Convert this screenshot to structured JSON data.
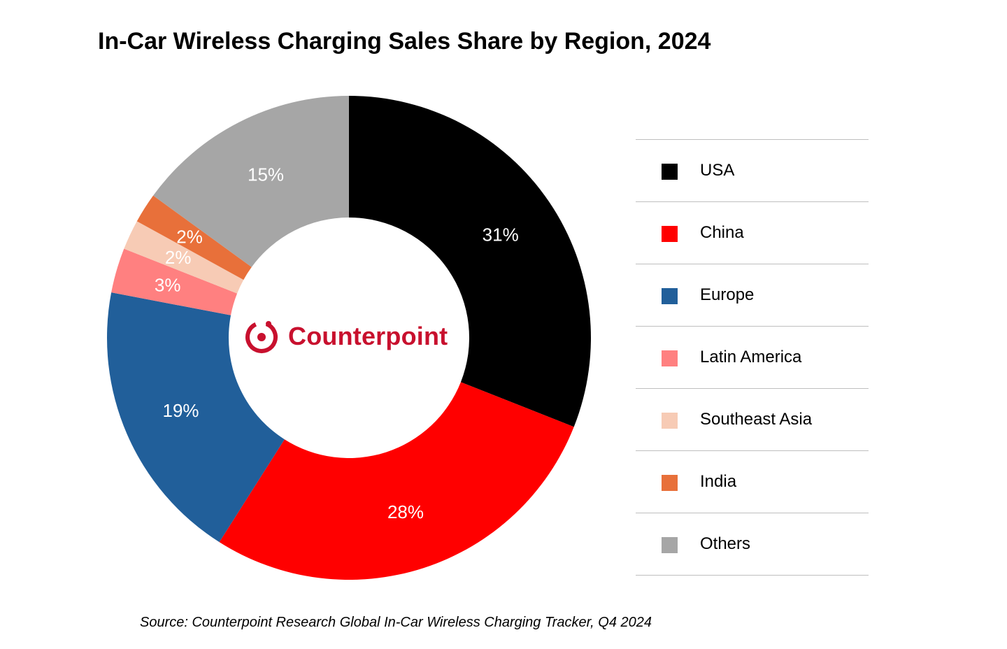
{
  "chart_data": {
    "type": "pie",
    "title": "In-Car Wireless Charging Sales Share by Region, 2024",
    "categories": [
      "USA",
      "China",
      "Europe",
      "Latin America",
      "Southeast Asia",
      "India",
      "Others"
    ],
    "values": [
      31,
      28,
      19,
      3,
      2,
      2,
      15
    ],
    "value_labels": [
      "31%",
      "28%",
      "19%",
      "3%",
      "2%",
      "2%",
      "15%"
    ],
    "colors": [
      "#000000",
      "#ff0000",
      "#215f9a",
      "#ff8080",
      "#f7cbb5",
      "#e8703a",
      "#a6a6a6"
    ],
    "legend_placement": "right",
    "style": "donut"
  },
  "logo": {
    "text": "Counterpoint",
    "color": "#c8102e"
  },
  "source_note": "Source: Counterpoint Research Global In-Car Wireless Charging Tracker, Q4 2024"
}
